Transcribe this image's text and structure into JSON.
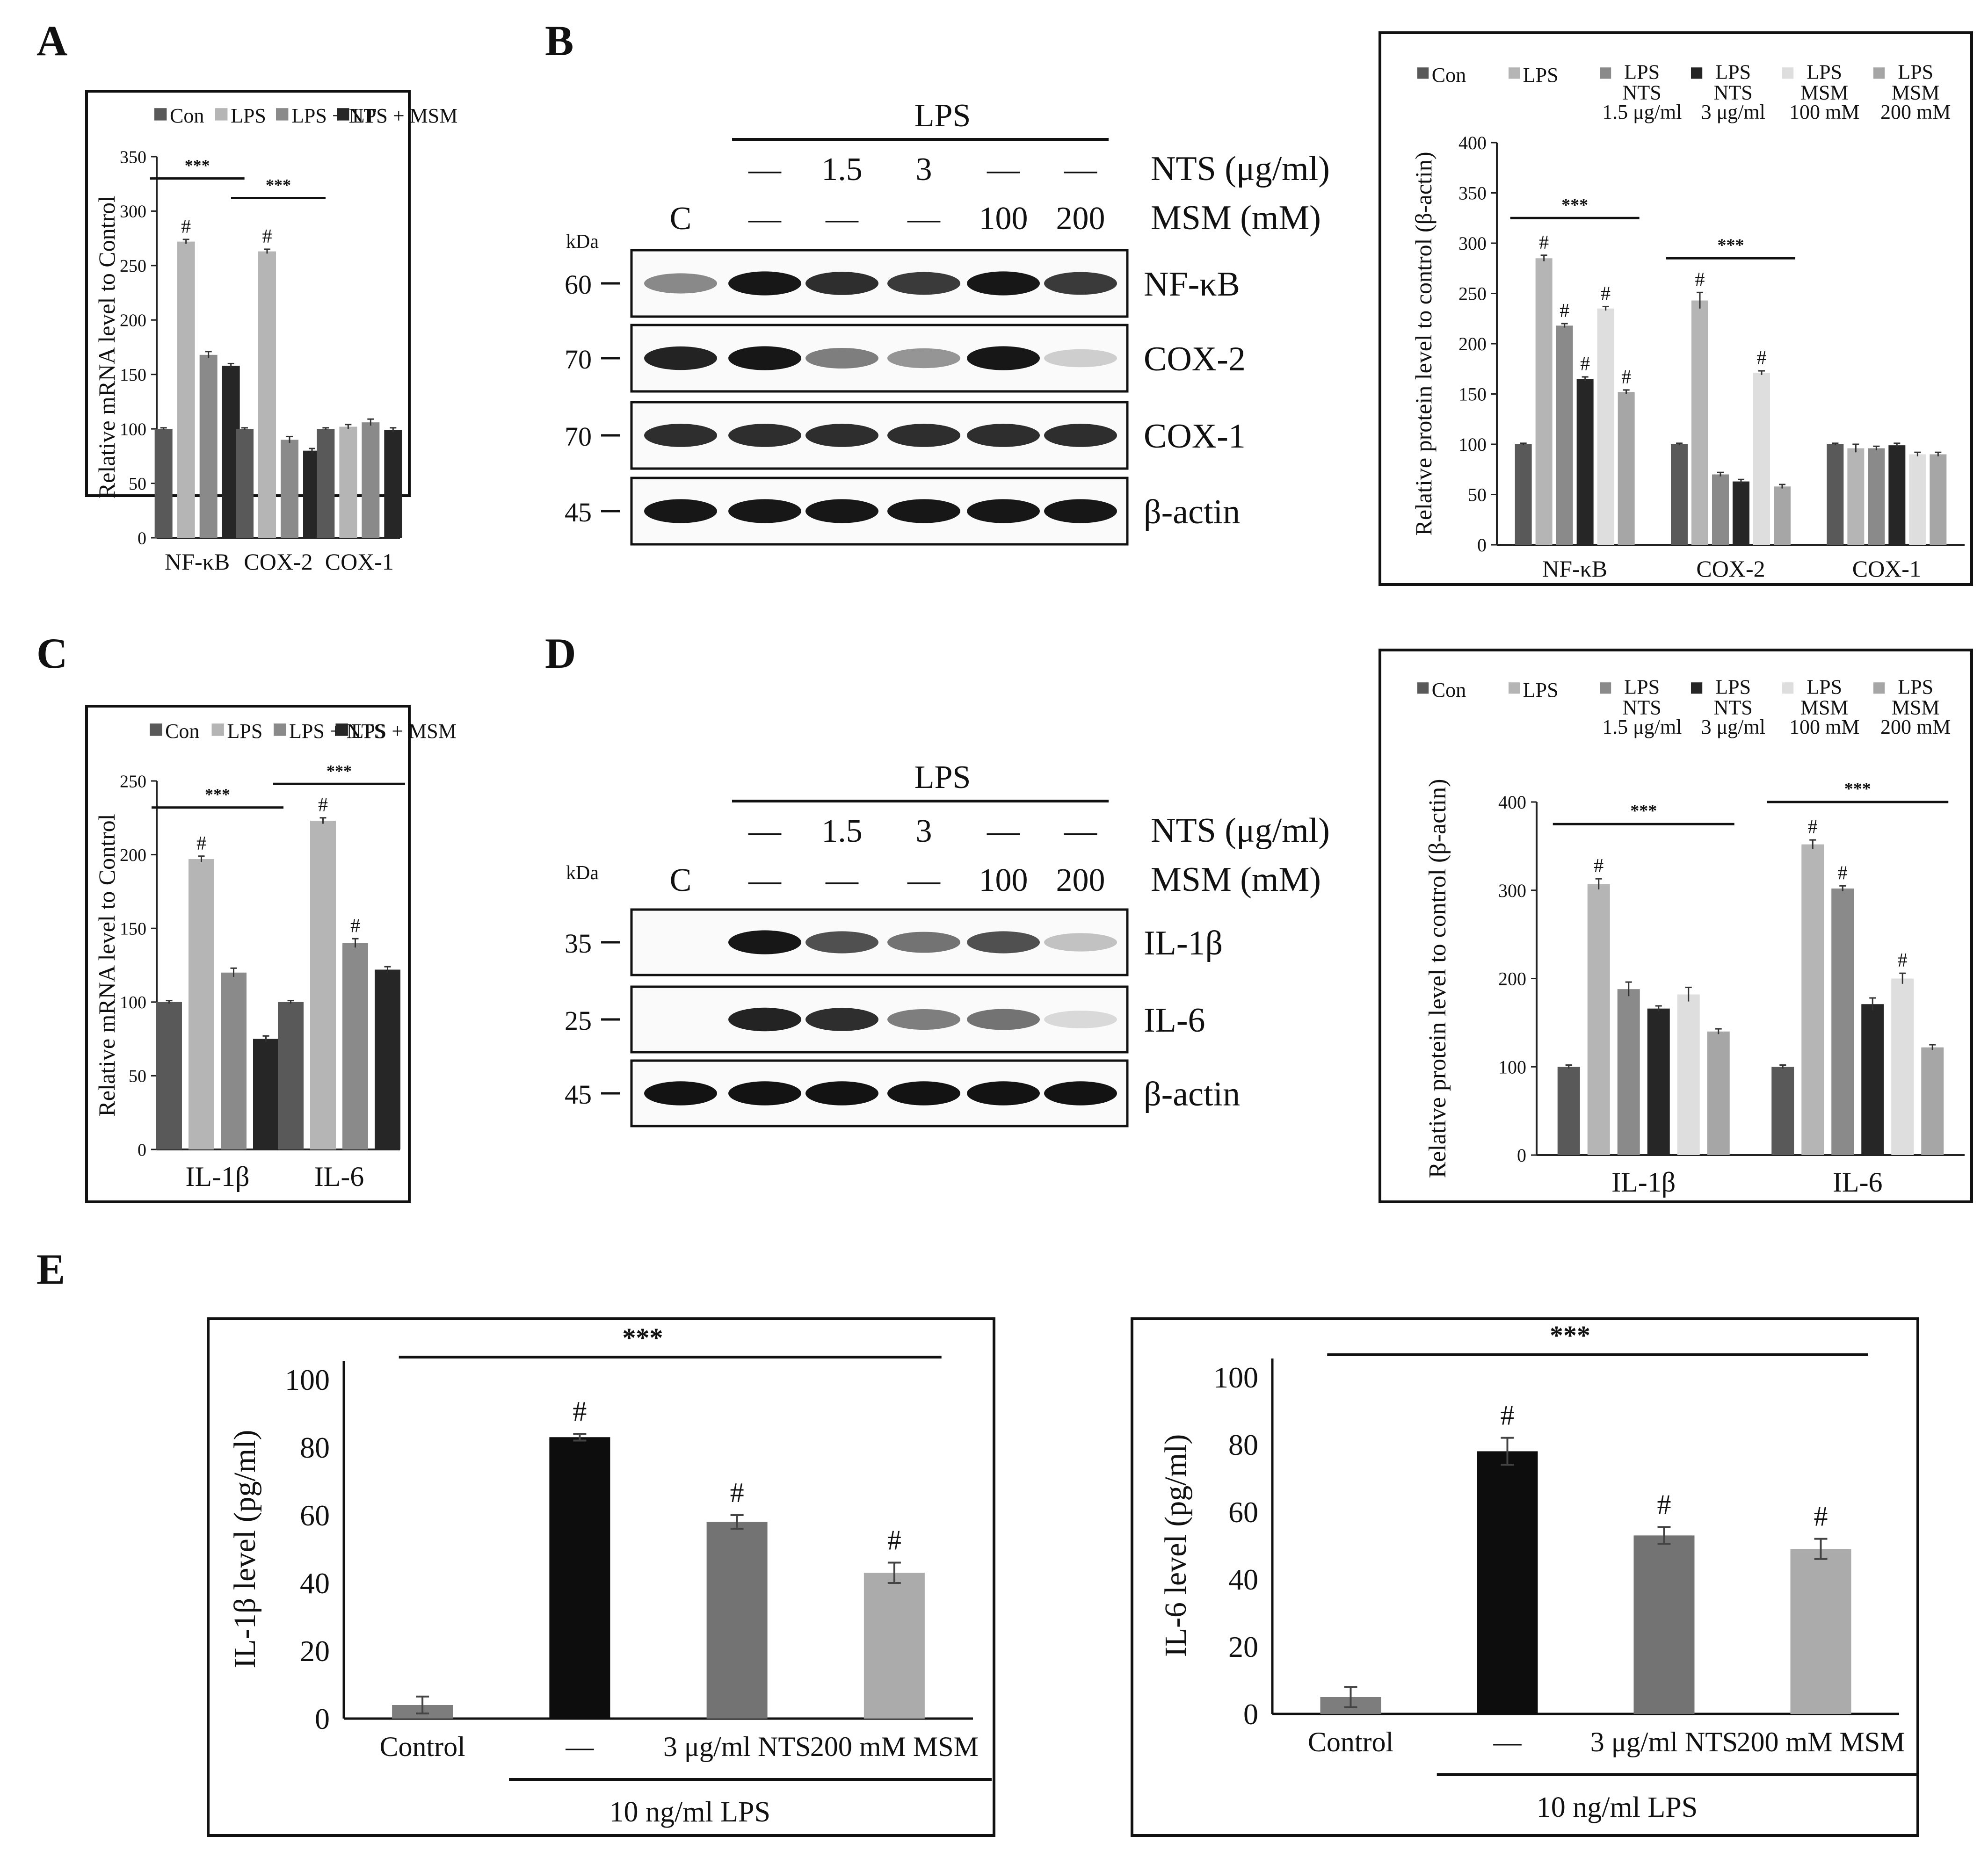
{
  "figure": {
    "panel_labels": [
      "A",
      "B",
      "C",
      "D",
      "E"
    ],
    "colors": {
      "con": "#595959",
      "lps": "#b5b5b5",
      "nts_mid": "#8a8a8a",
      "msm_dark": "#262626",
      "nts_low": "#8a8a8a",
      "nts_high": "#262626",
      "msm_100": "#dedede",
      "msm_200": "#a6a6a6",
      "e_control": "#7d7d7d",
      "e_lps": "#0d0d0d",
      "e_nts": "#737373",
      "e_msm": "#ababab"
    }
  },
  "chart_data": [
    {
      "id": "A",
      "type": "bar",
      "title": "",
      "ylabel": "Relative mRNA level to Control",
      "ylim": [
        0,
        350
      ],
      "yticks": [
        0,
        50,
        100,
        150,
        200,
        250,
        300,
        350
      ],
      "categories": [
        "NF-κB",
        "COX-2",
        "COX-1"
      ],
      "series": [
        {
          "name": "Con",
          "color_key": "con",
          "values": [
            100,
            100,
            100
          ],
          "errors": [
            1,
            1,
            1
          ]
        },
        {
          "name": "LPS",
          "color_key": "lps",
          "values": [
            272,
            263,
            102
          ],
          "errors": [
            2,
            2,
            2
          ]
        },
        {
          "name": "LPS + NTS",
          "color_key": "nts_mid",
          "values": [
            168,
            90,
            106
          ],
          "errors": [
            3,
            3,
            3
          ]
        },
        {
          "name": "LPS + MSM",
          "color_key": "msm_dark",
          "values": [
            158,
            80,
            99
          ],
          "errors": [
            2,
            2,
            2
          ]
        }
      ],
      "hash_marks": [
        {
          "category": 0,
          "series": 1
        },
        {
          "category": 1,
          "series": 1
        }
      ],
      "significance": [
        {
          "from": 0,
          "to": 0,
          "label": "***",
          "y": 330
        },
        {
          "from": 1,
          "to": 1,
          "label": "***",
          "y": 312
        }
      ]
    },
    {
      "id": "B",
      "type": "bar",
      "title": "",
      "ylabel": "Relative protein level to control (β-actin)",
      "ylim": [
        0,
        400
      ],
      "yticks": [
        0,
        50,
        100,
        150,
        200,
        250,
        300,
        350,
        400
      ],
      "categories": [
        "NF-κB",
        "COX-2",
        "COX-1"
      ],
      "series": [
        {
          "name": "Con",
          "color_key": "con",
          "values": [
            100,
            100,
            100
          ],
          "errors": [
            1,
            1,
            1
          ]
        },
        {
          "name": "LPS",
          "color_key": "lps",
          "values": [
            285,
            243,
            96
          ],
          "errors": [
            3,
            8,
            4
          ]
        },
        {
          "name": "LPS NTS 1.5 μg/ml",
          "color_key": "nts_low",
          "values": [
            218,
            70,
            96
          ],
          "errors": [
            2,
            2,
            2
          ]
        },
        {
          "name": "LPS NTS 3 μg/ml",
          "color_key": "nts_high",
          "values": [
            165,
            63,
            99
          ],
          "errors": [
            2,
            2,
            2
          ]
        },
        {
          "name": "LPS MSM 100 mM",
          "color_key": "msm_100",
          "values": [
            235,
            171,
            90
          ],
          "errors": [
            2,
            2,
            2
          ]
        },
        {
          "name": "LPS MSM 200 mM",
          "color_key": "msm_200",
          "values": [
            152,
            58,
            90
          ],
          "errors": [
            2,
            2,
            2
          ]
        }
      ],
      "hash_marks": [
        {
          "category": 0,
          "series": 1
        },
        {
          "category": 0,
          "series": 2
        },
        {
          "category": 0,
          "series": 3
        },
        {
          "category": 0,
          "series": 4
        },
        {
          "category": 0,
          "series": 5
        },
        {
          "category": 1,
          "series": 1
        },
        {
          "category": 1,
          "series": 4
        }
      ],
      "significance": [
        {
          "from": 0,
          "to": 0,
          "label": "***",
          "y": 325
        },
        {
          "from": 1,
          "to": 1,
          "label": "***",
          "y": 285
        }
      ]
    },
    {
      "id": "C",
      "type": "bar",
      "title": "",
      "ylabel": "Relative mRNA level to Control",
      "ylim": [
        0,
        250
      ],
      "yticks": [
        0,
        50,
        100,
        150,
        200,
        250
      ],
      "categories": [
        "IL-1β",
        "IL-6"
      ],
      "series": [
        {
          "name": "Con",
          "color_key": "con",
          "values": [
            100,
            100
          ],
          "errors": [
            1,
            1
          ]
        },
        {
          "name": "LPS",
          "color_key": "lps",
          "values": [
            197,
            223
          ],
          "errors": [
            2,
            2
          ]
        },
        {
          "name": "LPS + NTS",
          "color_key": "nts_mid",
          "values": [
            120,
            140
          ],
          "errors": [
            3,
            3
          ]
        },
        {
          "name": "LPS + MSM",
          "color_key": "msm_dark",
          "values": [
            75,
            122
          ],
          "errors": [
            2,
            2
          ]
        }
      ],
      "hash_marks": [
        {
          "category": 0,
          "series": 1
        },
        {
          "category": 1,
          "series": 1
        },
        {
          "category": 1,
          "series": 2
        }
      ],
      "significance": [
        {
          "from": 0,
          "to": 0,
          "label": "***",
          "y": 232
        },
        {
          "from": 1,
          "to": 1,
          "label": "***",
          "y": 248
        }
      ]
    },
    {
      "id": "D",
      "type": "bar",
      "title": "",
      "ylabel": "Relative protein level to control (β-actin)",
      "ylim": [
        0,
        400
      ],
      "yticks": [
        0,
        100,
        200,
        300,
        400
      ],
      "categories": [
        "IL-1β",
        "IL-6"
      ],
      "series": [
        {
          "name": "Con",
          "color_key": "con",
          "values": [
            100,
            100
          ],
          "errors": [
            2,
            2
          ]
        },
        {
          "name": "LPS",
          "color_key": "lps",
          "values": [
            307,
            352
          ],
          "errors": [
            6,
            5
          ]
        },
        {
          "name": "LPS NTS 1.5 μg/ml",
          "color_key": "nts_low",
          "values": [
            188,
            302
          ],
          "errors": [
            8,
            3
          ]
        },
        {
          "name": "LPS NTS 3 μg/ml",
          "color_key": "nts_high",
          "values": [
            166,
            171
          ],
          "errors": [
            3,
            7
          ]
        },
        {
          "name": "LPS MSM 100 mM",
          "color_key": "msm_100",
          "values": [
            182,
            200
          ],
          "errors": [
            8,
            6
          ]
        },
        {
          "name": "LPS MSM 200 mM",
          "color_key": "msm_200",
          "values": [
            140,
            122
          ],
          "errors": [
            3,
            3
          ]
        }
      ],
      "hash_marks": [
        {
          "category": 0,
          "series": 1
        },
        {
          "category": 1,
          "series": 1
        },
        {
          "category": 1,
          "series": 2
        },
        {
          "category": 1,
          "series": 4
        }
      ],
      "significance": [
        {
          "from": 0,
          "to": 0,
          "label": "***",
          "y": 375
        },
        {
          "from": 1,
          "to": 1,
          "label": "***",
          "y": 400
        }
      ]
    },
    {
      "id": "E1",
      "type": "bar",
      "title": "",
      "ylabel": "IL-1β level (pg/ml)",
      "ylim": [
        0,
        100
      ],
      "yticks": [
        0,
        20,
        40,
        60,
        80,
        100
      ],
      "categories": [
        "Control",
        "—",
        "3 μg/ml NTS",
        "200 mM MSM"
      ],
      "values": [
        4,
        83,
        58,
        43
      ],
      "errors": [
        2.5,
        1,
        2,
        3
      ],
      "bar_color_keys": [
        "e_control",
        "e_lps",
        "e_nts",
        "e_msm"
      ],
      "hash_marks": [
        1,
        2,
        3
      ],
      "significance_label": "***",
      "group_label": "10 ng/ml LPS"
    },
    {
      "id": "E2",
      "type": "bar",
      "title": "",
      "ylabel": "IL-6 level (pg/ml)",
      "ylim": [
        0,
        100
      ],
      "yticks": [
        0,
        20,
        40,
        60,
        80,
        100
      ],
      "categories": [
        "Control",
        "—",
        "3 μg/ml NTS",
        "200 mM MSM"
      ],
      "values": [
        5,
        78,
        53,
        49
      ],
      "errors": [
        3,
        4,
        2.5,
        3
      ],
      "bar_color_keys": [
        "e_control",
        "e_lps",
        "e_nts",
        "e_msm"
      ],
      "hash_marks": [
        1,
        2,
        3
      ],
      "significance_label": "***",
      "group_label": "10 ng/ml LPS"
    }
  ],
  "legends": {
    "four": [
      "Con",
      "LPS",
      "LPS + NTS",
      "LPS + MSM"
    ],
    "six": [
      {
        "top": "Con",
        "lines": []
      },
      {
        "top": "LPS",
        "lines": []
      },
      {
        "top": "LPS",
        "lines": [
          "NTS",
          "1.5 μg/ml"
        ]
      },
      {
        "top": "LPS",
        "lines": [
          "NTS",
          "3 μg/ml"
        ]
      },
      {
        "top": "LPS",
        "lines": [
          "MSM",
          "100 mM"
        ]
      },
      {
        "top": "LPS",
        "lines": [
          "MSM",
          "200 mM"
        ]
      }
    ]
  },
  "blots": {
    "B": {
      "lps_header": "LPS",
      "nts_row": [
        "—",
        "1.5",
        "3",
        "—",
        "—"
      ],
      "msm_row": [
        "C",
        "—",
        "—",
        "—",
        "100",
        "200"
      ],
      "nts_label": "NTS (μg/ml)",
      "msm_label": "MSM (mM)",
      "kda_label": "kDa",
      "bands": [
        {
          "name": "NF-κB",
          "kda": "60",
          "intensity": [
            0.45,
            0.95,
            0.85,
            0.8,
            0.95,
            0.8
          ]
        },
        {
          "name": "COX-2",
          "kda": "70",
          "intensity": [
            0.9,
            0.95,
            0.5,
            0.4,
            0.95,
            0.15
          ]
        },
        {
          "name": "COX-1",
          "kda": "70",
          "intensity": [
            0.85,
            0.85,
            0.85,
            0.85,
            0.85,
            0.85
          ]
        },
        {
          "name": "β-actin",
          "kda": "45",
          "intensity": [
            0.95,
            0.95,
            0.95,
            0.95,
            0.95,
            0.95
          ]
        }
      ]
    },
    "D": {
      "lps_header": "LPS",
      "nts_row": [
        "—",
        "1.5",
        "3",
        "—",
        "—"
      ],
      "msm_row": [
        "C",
        "—",
        "—",
        "—",
        "100",
        "200"
      ],
      "nts_label": "NTS (μg/ml)",
      "msm_label": "MSM (mM)",
      "kda_label": "kDa",
      "bands": [
        {
          "name": "IL-1β",
          "kda": "35",
          "intensity": [
            0.0,
            0.95,
            0.7,
            0.55,
            0.7,
            0.2
          ]
        },
        {
          "name": "IL-6",
          "kda": "25",
          "intensity": [
            0.0,
            0.9,
            0.85,
            0.5,
            0.55,
            0.1
          ]
        },
        {
          "name": "β-actin",
          "kda": "45",
          "intensity": [
            0.97,
            0.97,
            0.97,
            0.97,
            0.97,
            0.97
          ]
        }
      ]
    }
  }
}
